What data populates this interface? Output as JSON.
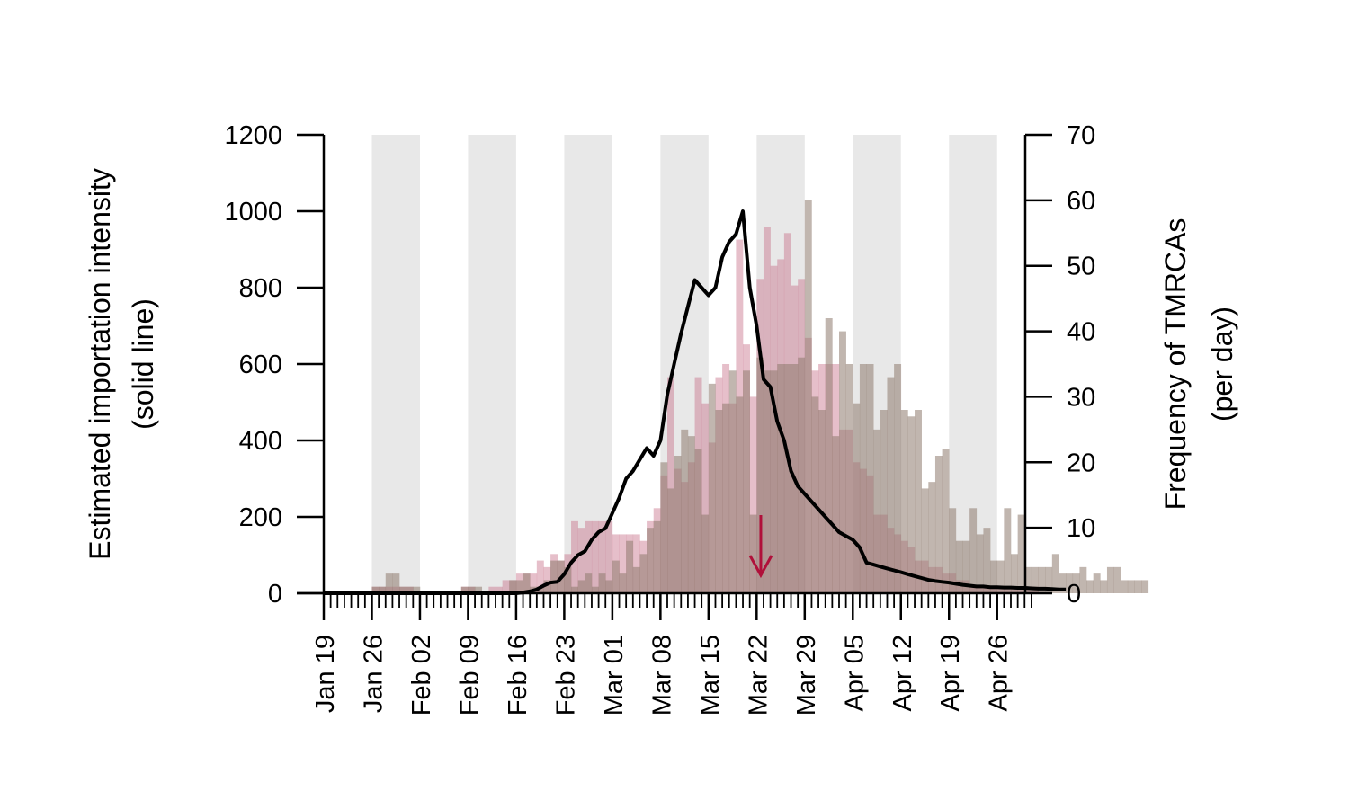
{
  "chart_data": {
    "type": "bar",
    "description_kind": "dual-axis histogram with line overlay",
    "x_axis": {
      "start_date": "Jan 19",
      "end_date": "May 02",
      "tick_labels": [
        "Jan 19",
        "Jan 26",
        "Feb 02",
        "Feb 09",
        "Feb 16",
        "Feb 23",
        "Mar 01",
        "Mar 08",
        "Mar 15",
        "Mar 22",
        "Mar 29",
        "Apr 05",
        "Apr 12",
        "Apr 19",
        "Apr 26"
      ],
      "minor_ticks": "daily",
      "shaded_weeks": [
        "Jan 26 – Feb 01",
        "Feb 09 – Feb 15",
        "Feb 23 – Feb 29",
        "Mar 08 – Mar 14",
        "Mar 22 – Mar 28",
        "Apr 05 – Apr 11",
        "Apr 19 – Apr 25"
      ]
    },
    "y_left": {
      "label_line1": "Estimated importation intensity",
      "label_line2": "(solid line)",
      "ylim": [
        0,
        1200
      ],
      "tick_labels": [
        "0",
        "200",
        "400",
        "600",
        "800",
        "1000",
        "1200"
      ]
    },
    "y_right": {
      "label_line1": "Frequency of TMRCAs",
      "label_line2": "(per day)",
      "ylim": [
        0,
        70
      ],
      "tick_labels": [
        "0",
        "10",
        "20",
        "30",
        "40",
        "50",
        "60",
        "70"
      ]
    },
    "colors": {
      "series_a": "#c8708a",
      "series_b": "#8e7a6d",
      "line": "#000000",
      "shade": "#e8e8e8",
      "arrow": "#b0103a"
    },
    "series": [
      {
        "kind": "bars",
        "axis": "right",
        "opacity": 0.45,
        "values": [
          0,
          0,
          0,
          0,
          0,
          0,
          0,
          1,
          1,
          1,
          1,
          1,
          1,
          0,
          0,
          0,
          0,
          0,
          0,
          0,
          1,
          1,
          0,
          0,
          1,
          1,
          2,
          2,
          3,
          3,
          3,
          5,
          4,
          6,
          5,
          6,
          11,
          10,
          11,
          11,
          11,
          11,
          9,
          9,
          9,
          9,
          8,
          11,
          13,
          18,
          33,
          19,
          17,
          20,
          33,
          29,
          23,
          33,
          35,
          29,
          54,
          38,
          30,
          48,
          56,
          50,
          51,
          55,
          47,
          48,
          39,
          34,
          35,
          35,
          35,
          25,
          25,
          20,
          19,
          18,
          12,
          12,
          10,
          9,
          8,
          7,
          5,
          5,
          4,
          4,
          3,
          3,
          2,
          2,
          1,
          1,
          1,
          1,
          1,
          1,
          1,
          1,
          1,
          1
        ],
        "note": "light pink bars"
      },
      {
        "kind": "bars",
        "axis": "right",
        "opacity": 0.55,
        "values": [
          0,
          0,
          0,
          0,
          0,
          0,
          0,
          1,
          1,
          3,
          3,
          1,
          1,
          1,
          0,
          0,
          0,
          0,
          0,
          0,
          1,
          1,
          1,
          0,
          0,
          0,
          0,
          2,
          2,
          3,
          1,
          1,
          2,
          5,
          5,
          4,
          1,
          2,
          3,
          1,
          3,
          2,
          5,
          3,
          8,
          4,
          6,
          10,
          11,
          20,
          16,
          21,
          25,
          24,
          22,
          12,
          32,
          28,
          29,
          34,
          30,
          34,
          12,
          36,
          34,
          34,
          35,
          35,
          35,
          36,
          60,
          30,
          28,
          42,
          24,
          40,
          35,
          29,
          35,
          35,
          25,
          28,
          33,
          35,
          28,
          27,
          28,
          16,
          17,
          21,
          22,
          13,
          8,
          8,
          13,
          9,
          10,
          5,
          5,
          13,
          6,
          12,
          4,
          4,
          4,
          4,
          6,
          3,
          3,
          3,
          4,
          2,
          3,
          2,
          4,
          4,
          2,
          2,
          2,
          2
        ],
        "note": "taupe bars"
      },
      {
        "kind": "line",
        "axis": "left",
        "name": "Estimated importation intensity",
        "values": [
          0,
          0,
          0,
          0,
          0,
          0,
          0,
          0,
          0,
          0,
          0,
          0,
          0,
          0,
          0,
          0,
          0,
          0,
          0,
          0,
          0,
          0,
          0,
          0,
          0,
          0,
          0,
          0,
          0,
          2,
          5,
          10,
          20,
          28,
          30,
          50,
          80,
          100,
          110,
          140,
          160,
          170,
          210,
          250,
          300,
          320,
          350,
          380,
          360,
          400,
          520,
          600,
          680,
          750,
          820,
          800,
          780,
          800,
          880,
          920,
          940,
          1000,
          800,
          700,
          560,
          540,
          450,
          400,
          320,
          280,
          260,
          240,
          220,
          200,
          180,
          160,
          150,
          140,
          120,
          80,
          75,
          70,
          65,
          60,
          55,
          50,
          45,
          40,
          35,
          32,
          30,
          28,
          25,
          22,
          20,
          18,
          18,
          16,
          16,
          15,
          15,
          14,
          14,
          13,
          12,
          12,
          11,
          10,
          10
        ]
      }
    ],
    "annotations": [
      {
        "type": "arrow",
        "at_date": "Mar 23",
        "y_left": 200,
        "direction": "down"
      }
    ]
  }
}
